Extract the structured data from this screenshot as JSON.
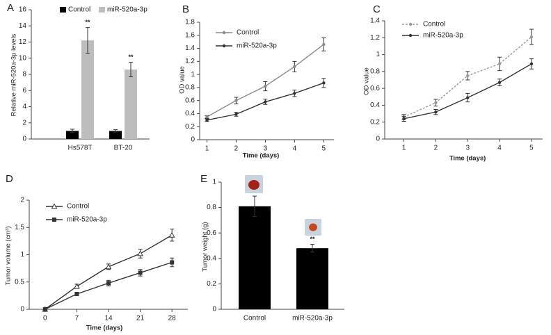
{
  "chart_data": [
    {
      "type": "bar",
      "label": "A",
      "ylabel": "Relative miR-520a-3p levels",
      "categories": [
        "Hs578T",
        "BT-20"
      ],
      "series": [
        {
          "name": "Control",
          "color": "#000000",
          "values": [
            1.0,
            1.0
          ],
          "errors": [
            0.2,
            0.15
          ]
        },
        {
          "name": "miR-520a-3p",
          "color": "#bdbdbd",
          "values": [
            12.2,
            8.6
          ],
          "errors": [
            1.6,
            0.9
          ],
          "significance": [
            "**",
            "**"
          ]
        }
      ],
      "ylim": [
        0,
        16
      ],
      "yticks": [
        0,
        2,
        4,
        6,
        8,
        10,
        12,
        14,
        16
      ],
      "legend": "top"
    },
    {
      "type": "line",
      "label": "B",
      "xlabel": "Time (days)",
      "ylabel": "OD value",
      "x": [
        1,
        2,
        3,
        4,
        5
      ],
      "series": [
        {
          "name": "Control",
          "color": "#8a8a8a",
          "marker": "circle",
          "values": [
            0.35,
            0.6,
            0.82,
            1.12,
            1.46
          ],
          "errors": [
            0.02,
            0.05,
            0.07,
            0.08,
            0.1
          ]
        },
        {
          "name": "miR-520a-3p",
          "color": "#333333",
          "marker": "circle",
          "values": [
            0.3,
            0.39,
            0.58,
            0.71,
            0.87
          ],
          "errors": [
            0.02,
            0.03,
            0.04,
            0.05,
            0.07
          ]
        }
      ],
      "xlim": [
        0.75,
        5.35
      ],
      "xticks": [
        1,
        2,
        3,
        4,
        5
      ],
      "ylim": [
        0,
        1.8
      ],
      "yticks": [
        0,
        0.2,
        0.4,
        0.6,
        0.8,
        1,
        1.2,
        1.4,
        1.6,
        1.8
      ],
      "legend": "upper left"
    },
    {
      "type": "line",
      "label": "C",
      "xlabel": "Time (days)",
      "ylabel": "OD value",
      "x": [
        1,
        2,
        3,
        4,
        5
      ],
      "series": [
        {
          "name": "Control",
          "color": "#9a9a9a",
          "marker": "circle",
          "dashed": true,
          "values": [
            0.26,
            0.43,
            0.75,
            0.89,
            1.21
          ],
          "errors": [
            0.03,
            0.04,
            0.05,
            0.08,
            0.09
          ]
        },
        {
          "name": "miR-520a-3p",
          "color": "#333333",
          "marker": "circle",
          "values": [
            0.24,
            0.32,
            0.49,
            0.67,
            0.89
          ],
          "errors": [
            0.03,
            0.03,
            0.05,
            0.04,
            0.06
          ]
        }
      ],
      "xlim": [
        0.4,
        5.35
      ],
      "xticks": [
        1,
        2,
        3,
        4,
        5
      ],
      "ylim": [
        0,
        1.4
      ],
      "yticks": [
        0,
        0.2,
        0.4,
        0.6,
        0.8,
        1,
        1.2,
        1.4
      ],
      "legend": "upper left"
    },
    {
      "type": "line",
      "label": "D",
      "xlabel": "Time (days)",
      "ylabel": "Tumor volume (cm³)",
      "x": [
        0,
        7,
        14,
        21,
        28
      ],
      "series": [
        {
          "name": "Control",
          "color": "#333333",
          "marker": "triangle",
          "values": [
            0,
            0.42,
            0.78,
            1.02,
            1.36
          ],
          "errors": [
            0,
            0.04,
            0.05,
            0.08,
            0.11
          ]
        },
        {
          "name": "miR-520a-3p",
          "color": "#333333",
          "marker": "square",
          "values": [
            0,
            0.28,
            0.48,
            0.67,
            0.86
          ],
          "errors": [
            0,
            0.03,
            0.05,
            0.06,
            0.08
          ]
        }
      ],
      "xlim": [
        -3.5,
        31.5
      ],
      "xticks": [
        0,
        7,
        14,
        21,
        28
      ],
      "ylim": [
        0,
        2
      ],
      "yticks": [
        0,
        0.5,
        1,
        1.5,
        2
      ],
      "legend": "upper left"
    },
    {
      "type": "bar",
      "label": "E",
      "ylabel": "Tumor weight (g)",
      "categories": [
        "Control",
        "miR-520a-3p"
      ],
      "values": [
        0.81,
        0.48
      ],
      "errors": [
        0.08,
        0.03
      ],
      "significance": [
        null,
        "**"
      ],
      "color": "#000000",
      "ylim": [
        0,
        1
      ],
      "yticks": [
        0,
        0.2,
        0.4,
        0.6,
        0.8,
        1
      ]
    }
  ]
}
